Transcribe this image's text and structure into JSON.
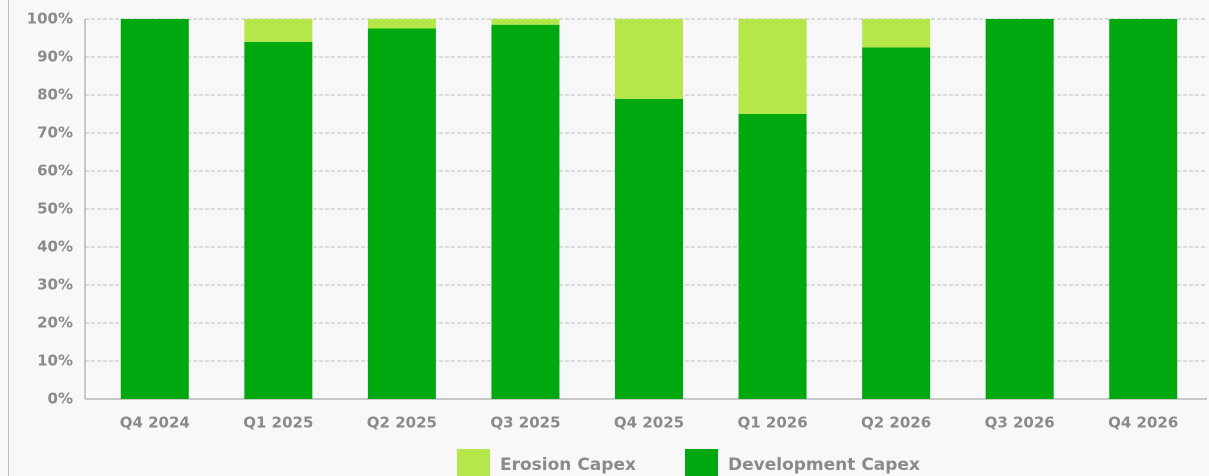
{
  "chart_data": {
    "type": "stacked_bar",
    "categories": [
      "Q4 2024",
      "Q1 2025",
      "Q2 2025",
      "Q3 2025",
      "Q4 2025",
      "Q1 2026",
      "Q2 2026",
      "Q3 2026",
      "Q4 2026"
    ],
    "series": [
      {
        "name": "Erosion Capex",
        "color": "#b5e64a",
        "values": [
          0,
          6,
          2.5,
          1.5,
          21,
          25,
          7.5,
          0,
          0
        ]
      },
      {
        "name": "Development Capex",
        "color": "#00a80f",
        "values": [
          100,
          94,
          97.5,
          98.5,
          79,
          75,
          92.5,
          100,
          100
        ]
      }
    ],
    "ylim": [
      0,
      100
    ],
    "yticks": [
      {
        "value": 0,
        "label": "0%"
      },
      {
        "value": 10,
        "label": "10%"
      },
      {
        "value": 20,
        "label": "20%"
      },
      {
        "value": 30,
        "label": "30%"
      },
      {
        "value": 40,
        "label": "40%"
      },
      {
        "value": 50,
        "label": "50%"
      },
      {
        "value": 60,
        "label": "60%"
      },
      {
        "value": 70,
        "label": "70%"
      },
      {
        "value": 80,
        "label": "80%"
      },
      {
        "value": 90,
        "label": "90%"
      },
      {
        "value": 100,
        "label": "100%"
      }
    ],
    "grid": true,
    "legend": "bottom"
  }
}
